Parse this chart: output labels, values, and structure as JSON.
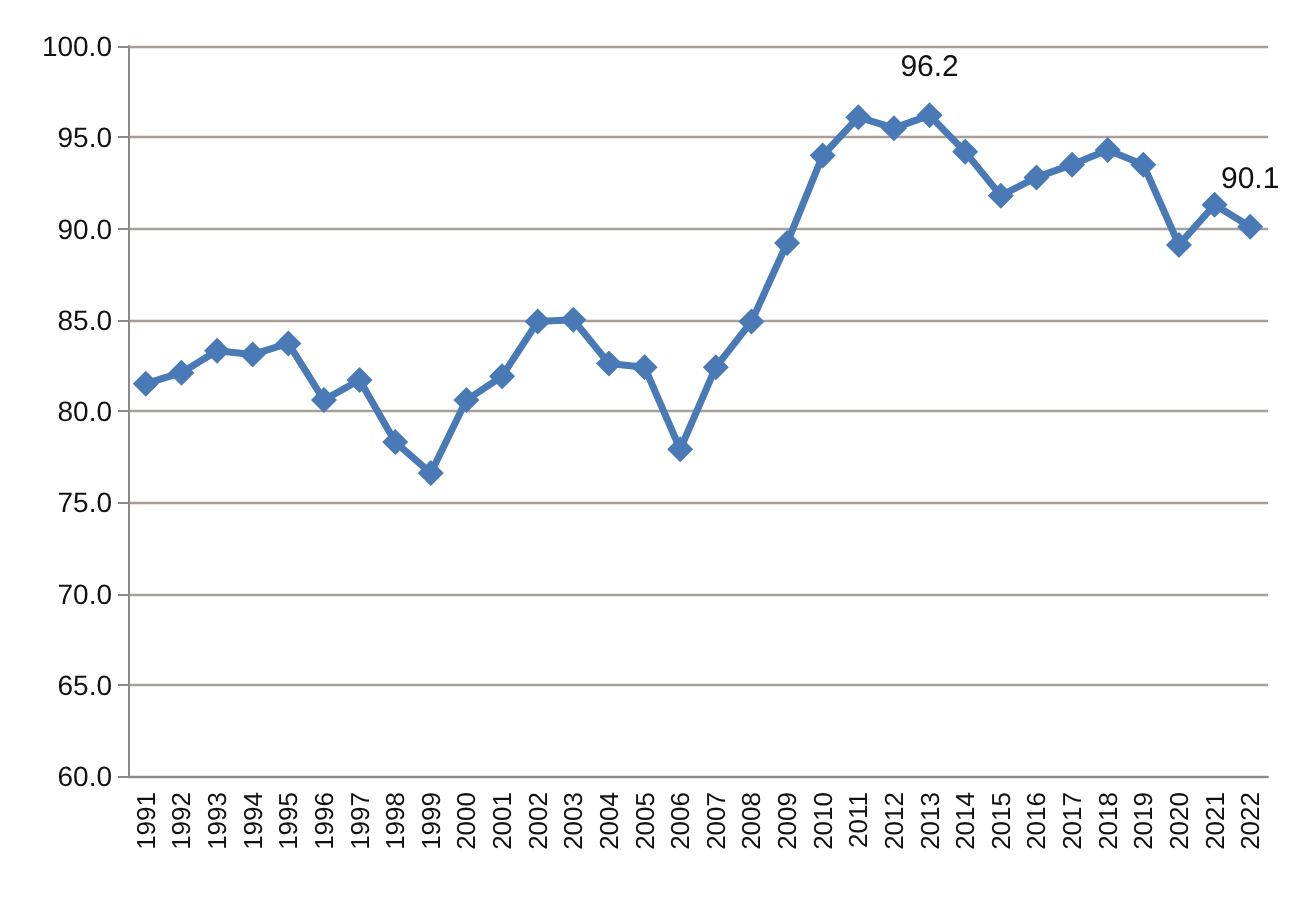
{
  "chart_data": {
    "type": "line",
    "categories": [
      "1991",
      "1992",
      "1993",
      "1994",
      "1995",
      "1996",
      "1997",
      "1998",
      "1999",
      "2000",
      "2001",
      "2002",
      "2003",
      "2004",
      "2005",
      "2006",
      "2007",
      "2008",
      "2009",
      "2010",
      "2011",
      "2012",
      "2013",
      "2014",
      "2015",
      "2016",
      "2017",
      "2018",
      "2019",
      "2020",
      "2021",
      "2022"
    ],
    "values": [
      81.5,
      82.1,
      83.3,
      83.1,
      83.7,
      80.6,
      81.7,
      78.3,
      76.6,
      80.6,
      81.9,
      84.9,
      85.0,
      82.6,
      82.4,
      77.9,
      82.4,
      84.9,
      89.2,
      94.0,
      96.1,
      95.5,
      96.2,
      94.2,
      91.8,
      92.8,
      93.5,
      94.3,
      93.5,
      89.1,
      91.3,
      90.1
    ],
    "value_labels": [
      null,
      null,
      null,
      null,
      null,
      null,
      null,
      null,
      null,
      null,
      null,
      null,
      null,
      null,
      null,
      null,
      null,
      null,
      null,
      null,
      null,
      null,
      "96.2",
      null,
      null,
      null,
      null,
      null,
      null,
      null,
      null,
      "90.1"
    ],
    "color": "#4a7ab5",
    "ylim": [
      60,
      100
    ],
    "yticks": [
      {
        "value": 60,
        "label": "60.0"
      },
      {
        "value": 65,
        "label": "65.0"
      },
      {
        "value": 70,
        "label": "70.0"
      },
      {
        "value": 75,
        "label": "75.0"
      },
      {
        "value": 80,
        "label": "80.0"
      },
      {
        "value": 85,
        "label": "85.0"
      },
      {
        "value": 90,
        "label": "90.0"
      },
      {
        "value": 95,
        "label": "95.0"
      },
      {
        "value": 100,
        "label": "100.0"
      }
    ],
    "grid": "y",
    "marker": "diamond",
    "line_style": "solid"
  }
}
